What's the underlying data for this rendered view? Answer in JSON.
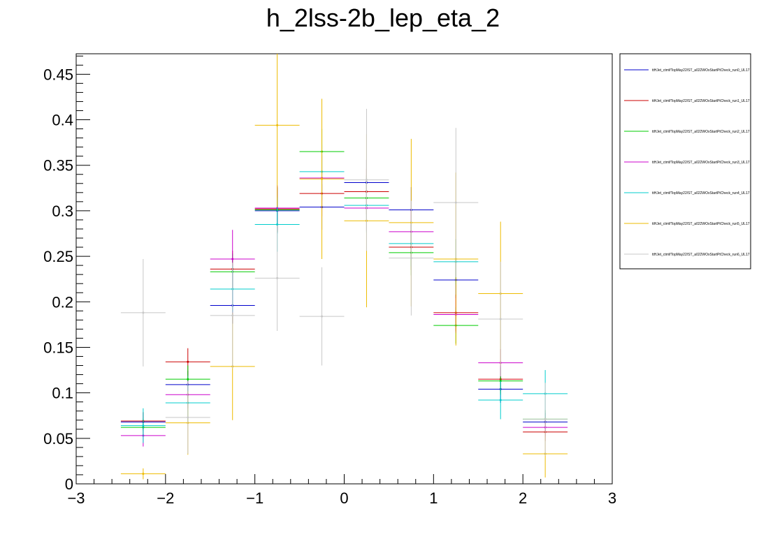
{
  "chart_data": {
    "type": "scatter",
    "title": "h_2lss-2b_lep_eta_2",
    "xlabel": "",
    "ylabel": "",
    "xlim": [
      -3,
      3
    ],
    "ylim": [
      0,
      0.4725
    ],
    "x_ticks": [
      -3,
      -2,
      -1,
      0,
      1,
      2,
      3
    ],
    "x_tick_labels": [
      "−3",
      "−2",
      "−1",
      "0",
      "1",
      "2",
      "3"
    ],
    "y_ticks": [
      0,
      0.05,
      0.1,
      0.15,
      0.2,
      0.25,
      0.3,
      0.35,
      0.4,
      0.45
    ],
    "y_tick_labels": [
      "0",
      "0.05",
      "0.1",
      "0.15",
      "0.2",
      "0.25",
      "0.3",
      "0.35",
      "0.4",
      "0.45"
    ],
    "grid": false,
    "legend_position": "top-right, outside plot",
    "bin_edges": [
      -2.5,
      -2.0,
      -1.5,
      -1.0,
      -0.5,
      0.0,
      0.5,
      1.0,
      1.5,
      2.0,
      2.5
    ],
    "series": [
      {
        "name": "ttHJet_ctmf/TopMay22/ST_a022WOxStartPtCheck_run0_UL17",
        "color": "#0000cc",
        "values": [
          0.068,
          0.109,
          0.196,
          0.3,
          0.304,
          0.331,
          0.301,
          0.224,
          0.104,
          0.068
        ],
        "errors": [
          0.01,
          0.015,
          0.02,
          0.025,
          0.025,
          0.025,
          0.025,
          0.02,
          0.015,
          0.01
        ]
      },
      {
        "name": "ttHJet_ctmf/TopMay22/ST_a022WOxStartPtCheck_run1_UL17",
        "color": "#cc0000",
        "values": [
          0.069,
          0.134,
          0.236,
          0.302,
          0.319,
          0.321,
          0.26,
          0.188,
          0.115,
          0.057
        ],
        "errors": [
          0.01,
          0.015,
          0.02,
          0.025,
          0.025,
          0.025,
          0.025,
          0.02,
          0.015,
          0.01
        ]
      },
      {
        "name": "ttHJet_ctmf/TopMay22/ST_a022WOxStartPtCheck_run2_UL17",
        "color": "#00cc00",
        "values": [
          0.062,
          0.115,
          0.233,
          0.301,
          0.365,
          0.314,
          0.254,
          0.174,
          0.113,
          0.071
        ],
        "errors": [
          0.01,
          0.015,
          0.02,
          0.025,
          0.025,
          0.025,
          0.025,
          0.02,
          0.015,
          0.01
        ]
      },
      {
        "name": "ttHJet_ctmf/TopMay22/ST_a022WOxStartPtCheck_run3_UL17",
        "color": "#cc00cc",
        "values": [
          0.053,
          0.098,
          0.247,
          0.303,
          0.336,
          0.303,
          0.277,
          0.186,
          0.133,
          0.062
        ],
        "errors": [
          0.012,
          0.015,
          0.032,
          0.025,
          0.025,
          0.025,
          0.025,
          0.02,
          0.015,
          0.01
        ]
      },
      {
        "name": "ttHJet_ctmf/TopMay22/ST_a022WOxStartPtCheck_run4_UL17",
        "color": "#00cccc",
        "values": [
          0.064,
          0.089,
          0.214,
          0.285,
          0.343,
          0.306,
          0.264,
          0.244,
          0.092,
          0.099
        ],
        "errors": [
          0.019,
          0.02,
          0.025,
          0.03,
          0.03,
          0.03,
          0.025,
          0.025,
          0.021,
          0.026
        ]
      },
      {
        "name": "ttHJet_ctmf/TopMay22/ST_a022WOxStartPtCheck_run5_UL17",
        "color": "#eebb00",
        "values": [
          0.011,
          0.067,
          0.129,
          0.394,
          0.335,
          0.289,
          0.287,
          0.247,
          0.209,
          0.033
        ],
        "errors": [
          0.006,
          0.035,
          0.059,
          0.09,
          0.088,
          0.095,
          0.092,
          0.095,
          0.079,
          0.026
        ]
      },
      {
        "name": "ttHJet_ctmf/TopMay22/ST_a022WOxStartPtCheck_run6_UL17",
        "color": "#c8c8c8",
        "values": [
          0.188,
          0.073,
          0.185,
          0.226,
          0.184,
          0.334,
          0.248,
          0.309,
          0.181,
          0.071
        ],
        "errors": [
          0.059,
          0.04,
          0.058,
          0.058,
          0.054,
          0.078,
          0.063,
          0.082,
          0.063,
          0.04
        ]
      }
    ]
  }
}
